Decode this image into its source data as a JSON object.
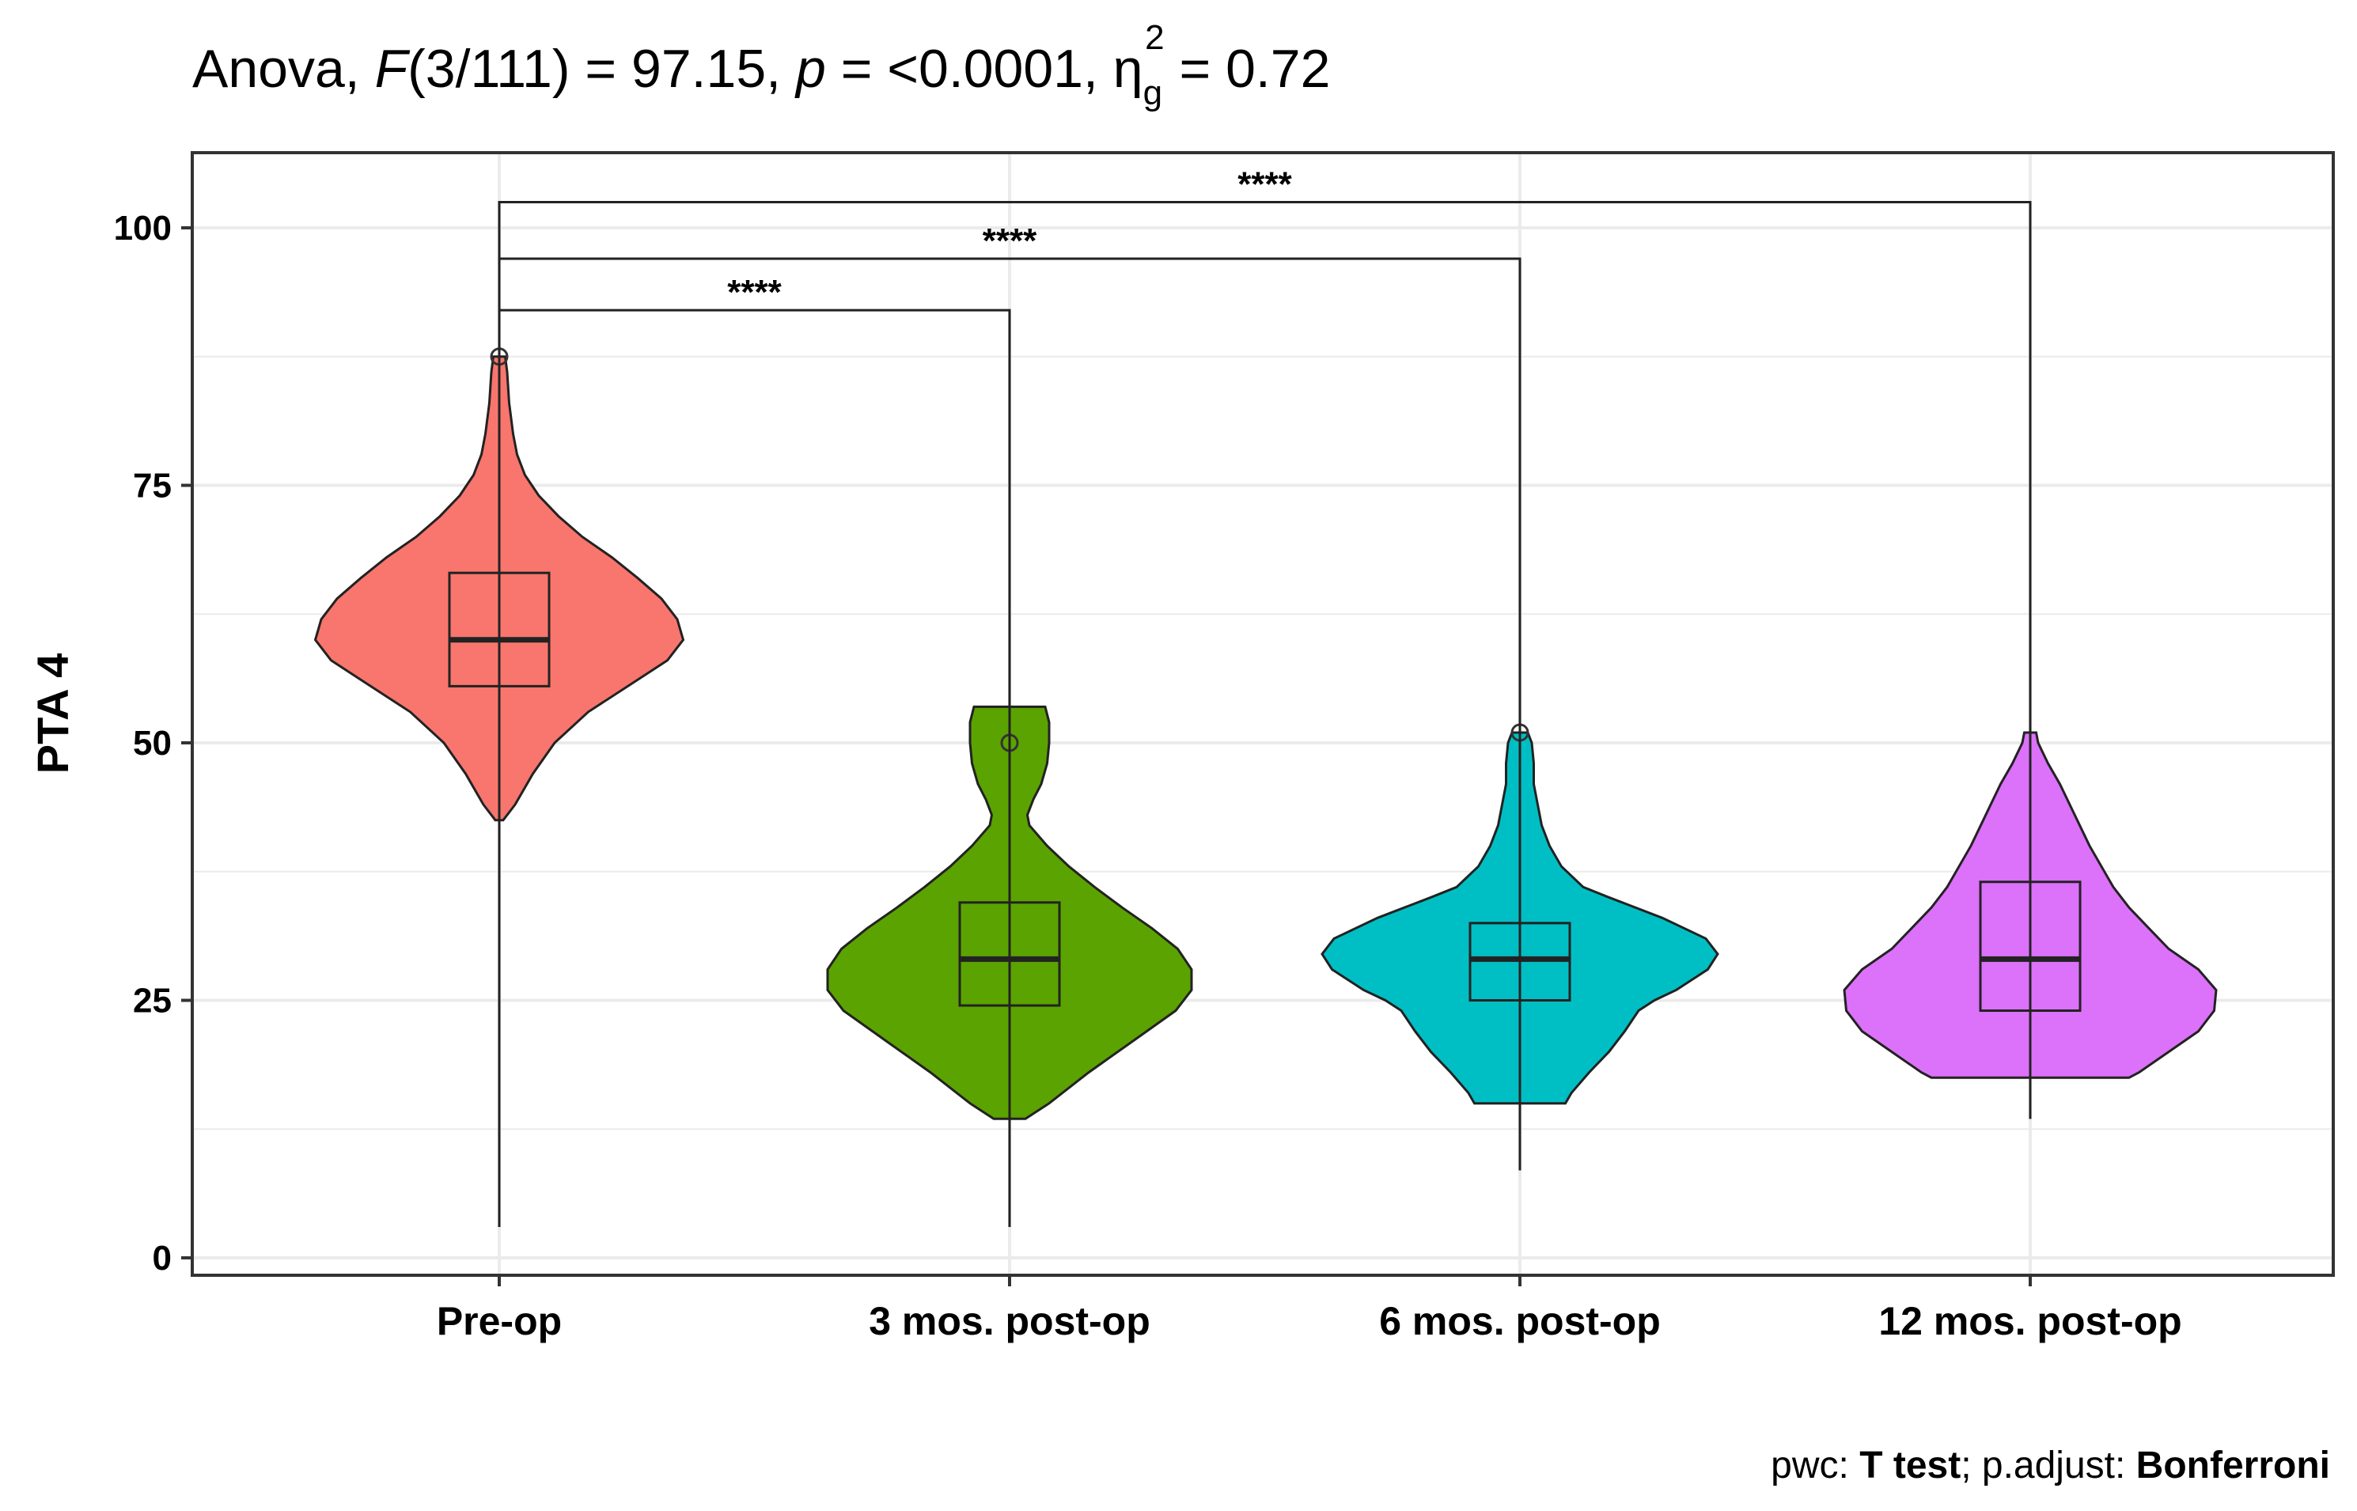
{
  "chart_data": {
    "type": "violin",
    "title": {
      "prefix": "Anova, ",
      "f_symbol": "F",
      "f_df": "(3/111) = 97.15, ",
      "p_symbol": "p",
      "p_value": " = <0.0001, ",
      "eta_symbol": "η",
      "eta_sub": "g",
      "eta_sup": "2",
      "eta_value": " = 0.72"
    },
    "xlabel": "",
    "ylabel": "PTA 4",
    "ylim": [
      0,
      107
    ],
    "yticks": [
      0,
      25,
      50,
      75,
      100
    ],
    "grid": true,
    "categories": [
      "Pre-op",
      "3 mos. post-op",
      "6 mos. post-op",
      "12 mos. post-op"
    ],
    "colors": [
      "#F8766D",
      "#5BA300",
      "#00BFC4",
      "#DC71FA"
    ],
    "groups": [
      {
        "name": "Pre-op",
        "min": 3,
        "q1": 55.5,
        "median": 60,
        "q3": 66.5,
        "max": 77.5,
        "outliers": [
          87.5
        ],
        "violin": [
          [
            42.5,
            0.02
          ],
          [
            44,
            0.08
          ],
          [
            47,
            0.17
          ],
          [
            50,
            0.28
          ],
          [
            53,
            0.45
          ],
          [
            56,
            0.69
          ],
          [
            58,
            0.85
          ],
          [
            60,
            0.93
          ],
          [
            62,
            0.9
          ],
          [
            64,
            0.82
          ],
          [
            66,
            0.7
          ],
          [
            68,
            0.57
          ],
          [
            70,
            0.42
          ],
          [
            72,
            0.3
          ],
          [
            74,
            0.2
          ],
          [
            76,
            0.13
          ],
          [
            78,
            0.09
          ],
          [
            80,
            0.07
          ],
          [
            83,
            0.05
          ],
          [
            86,
            0.04
          ],
          [
            87.5,
            0.03
          ]
        ]
      },
      {
        "name": "3 mos. post-op",
        "min": 3,
        "q1": 24.5,
        "median": 29,
        "q3": 34.5,
        "max": 38.5,
        "outliers": [
          50
        ],
        "violin": [
          [
            13.5,
            0.08
          ],
          [
            15,
            0.2
          ],
          [
            18,
            0.4
          ],
          [
            21,
            0.62
          ],
          [
            24,
            0.84
          ],
          [
            26,
            0.92
          ],
          [
            28,
            0.92
          ],
          [
            30,
            0.85
          ],
          [
            32,
            0.72
          ],
          [
            34,
            0.57
          ],
          [
            36,
            0.43
          ],
          [
            38,
            0.3
          ],
          [
            40,
            0.19
          ],
          [
            42,
            0.1
          ],
          [
            43,
            0.09
          ],
          [
            44.5,
            0.12
          ],
          [
            46,
            0.16
          ],
          [
            48,
            0.19
          ],
          [
            50,
            0.2
          ],
          [
            52,
            0.2
          ],
          [
            53.5,
            0.18
          ]
        ]
      },
      {
        "name": "6 mos. post-op",
        "min": 8.5,
        "q1": 25,
        "median": 29,
        "q3": 32.5,
        "max": 44,
        "outliers": [
          51
        ],
        "violin": [
          [
            15,
            0.23
          ],
          [
            16,
            0.26
          ],
          [
            18,
            0.35
          ],
          [
            20,
            0.45
          ],
          [
            22,
            0.53
          ],
          [
            24,
            0.6
          ],
          [
            25,
            0.68
          ],
          [
            26,
            0.79
          ],
          [
            28,
            0.95
          ],
          [
            29.5,
            1.0
          ],
          [
            31,
            0.94
          ],
          [
            33,
            0.72
          ],
          [
            35,
            0.45
          ],
          [
            36,
            0.32
          ],
          [
            38,
            0.21
          ],
          [
            40,
            0.15
          ],
          [
            42,
            0.11
          ],
          [
            44,
            0.09
          ],
          [
            46,
            0.07
          ],
          [
            48,
            0.07
          ],
          [
            50,
            0.06
          ],
          [
            51,
            0.04
          ]
        ]
      },
      {
        "name": "12 mos. post-op",
        "min": 13.5,
        "q1": 24,
        "median": 29,
        "q3": 36.5,
        "max": 51,
        "outliers": [],
        "violin": [
          [
            17.5,
            0.5
          ],
          [
            18,
            0.55
          ],
          [
            20,
            0.7
          ],
          [
            22,
            0.85
          ],
          [
            24,
            0.93
          ],
          [
            26,
            0.94
          ],
          [
            28,
            0.85
          ],
          [
            30,
            0.7
          ],
          [
            32,
            0.6
          ],
          [
            34,
            0.5
          ],
          [
            36,
            0.42
          ],
          [
            38,
            0.36
          ],
          [
            40,
            0.3
          ],
          [
            42,
            0.25
          ],
          [
            44,
            0.2
          ],
          [
            46,
            0.15
          ],
          [
            48,
            0.09
          ],
          [
            50,
            0.04
          ],
          [
            51,
            0.03
          ]
        ]
      }
    ],
    "comparisons": [
      {
        "from": "Pre-op",
        "to": "3 mos. post-op",
        "y": 92,
        "label": "****"
      },
      {
        "from": "Pre-op",
        "to": "6 mos. post-op",
        "y": 97,
        "label": "****"
      },
      {
        "from": "Pre-op",
        "to": "12 mos. post-op",
        "y": 102.5,
        "label": "****"
      }
    ],
    "caption": {
      "pwc_prefix": "pwc: ",
      "pwc_test": "T test",
      "adjust_prefix": "; p.adjust: ",
      "adjust_method": "Bonferroni"
    }
  }
}
